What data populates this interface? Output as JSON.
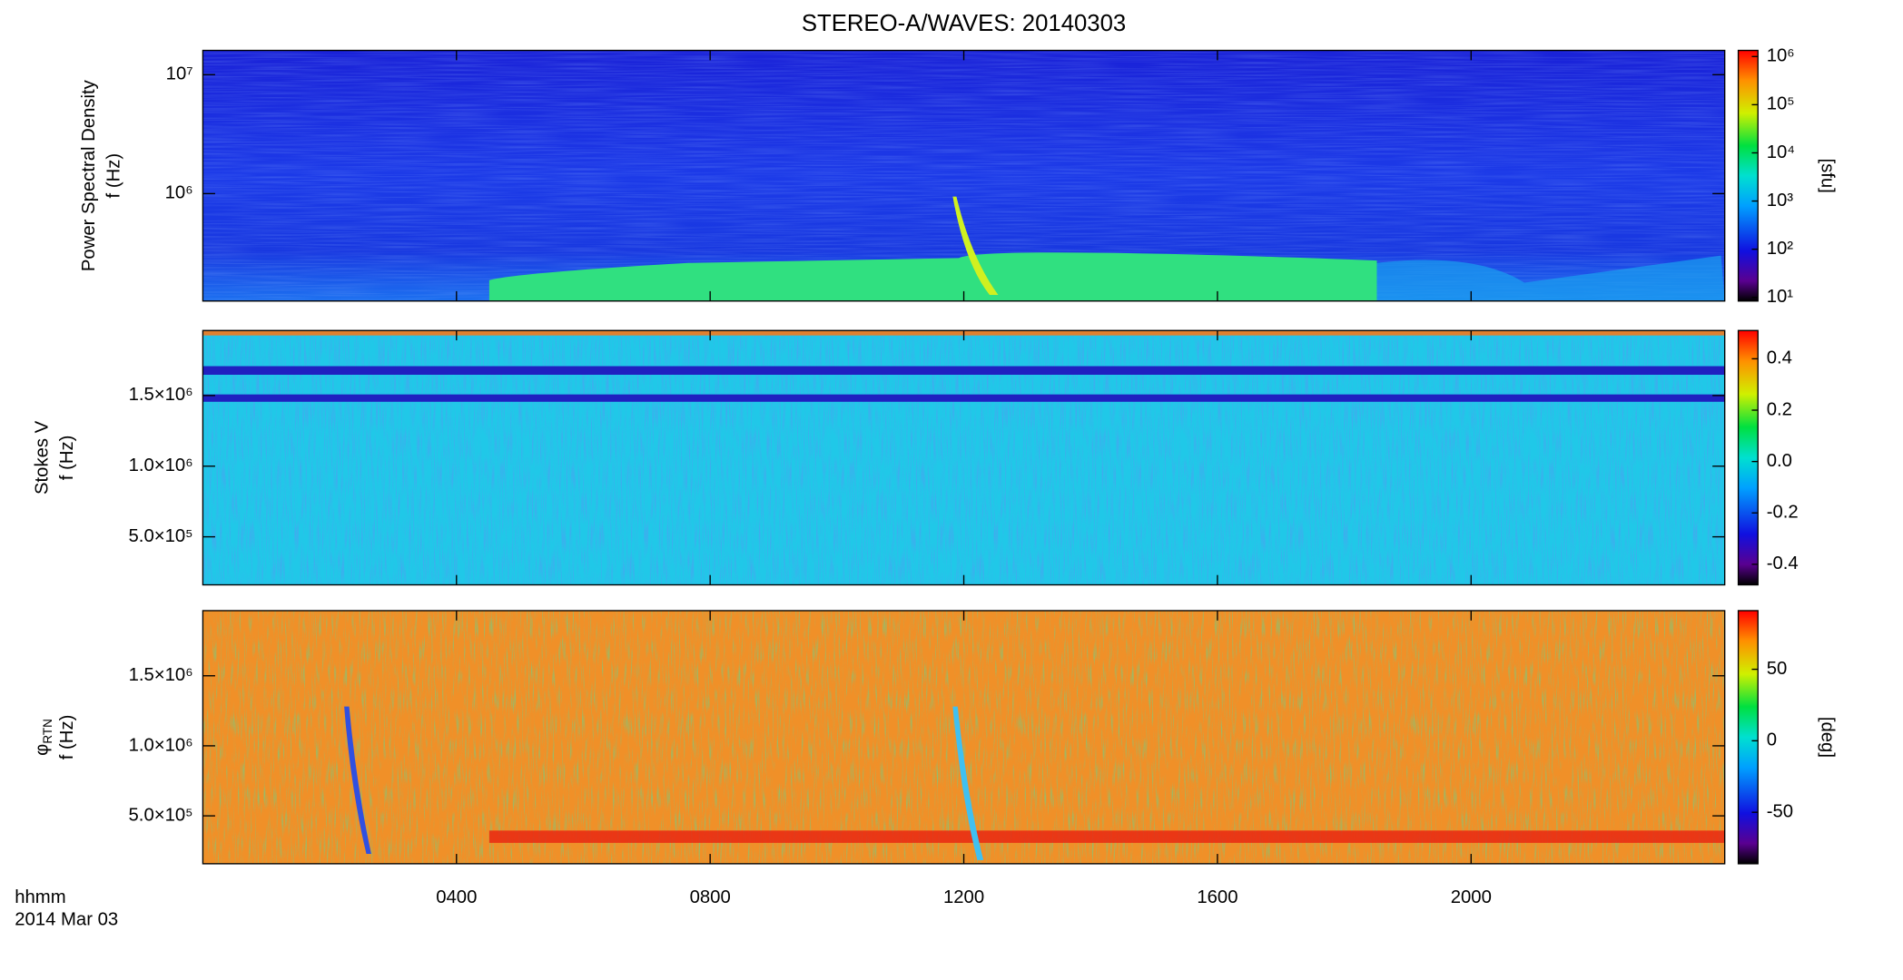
{
  "chart_data": [
    {
      "type": "spectrogram",
      "title": "STEREO-A/WAVES: 20140303",
      "quantity": "Power Spectral Density",
      "ylabel": "f (Hz)",
      "yscale": "log",
      "ylim": [
        125000,
        16000000
      ],
      "yticks": [
        {
          "value": 1000000,
          "label": "10⁶"
        },
        {
          "value": 10000000,
          "label": "10⁷"
        }
      ],
      "xlim": [
        0,
        24
      ],
      "colorbar": {
        "label": "[sfu]",
        "scale": "log",
        "lim": [
          8.4,
          1340000
        ],
        "ticks": [
          {
            "value": 10,
            "label": "10¹"
          },
          {
            "value": 100,
            "label": "10²"
          },
          {
            "value": 1000,
            "label": "10³"
          },
          {
            "value": 10000,
            "label": "10⁴"
          },
          {
            "value": 100000,
            "label": "10⁵"
          },
          {
            "value": 1000000,
            "label": "10⁶"
          }
        ]
      }
    },
    {
      "type": "spectrogram",
      "quantity": "Stokes V",
      "ylabel": "f (Hz)",
      "yscale": "linear",
      "ylim": [
        160000,
        1960000
      ],
      "yticks": [
        {
          "value": 500000,
          "label": "5.0×10⁵"
        },
        {
          "value": 1000000,
          "label": "1.0×10⁶"
        },
        {
          "value": 1500000,
          "label": "1.5×10⁶"
        }
      ],
      "xlim": [
        0,
        24
      ],
      "colorbar": {
        "scale": "linear",
        "lim": [
          -0.48,
          0.51
        ],
        "ticks": [
          -0.4,
          -0.2,
          {
            "value": 0,
            "label": "0.0"
          },
          0.2,
          0.4
        ]
      }
    },
    {
      "type": "spectrogram",
      "quantity": "φ",
      "quantity_subscript": "RTN",
      "ylabel": "f (Hz)",
      "yscale": "linear",
      "ylim": [
        158000,
        1965000
      ],
      "yticks": [
        {
          "value": 500000,
          "label": "5.0×10⁵"
        },
        {
          "value": 1000000,
          "label": "1.0×10⁶"
        },
        {
          "value": 1500000,
          "label": "1.5×10⁶"
        }
      ],
      "xlim": [
        0,
        24
      ],
      "xticks": [
        {
          "value": 4,
          "label": "0400"
        },
        {
          "value": 8,
          "label": "0800"
        },
        {
          "value": 12,
          "label": "1200"
        },
        {
          "value": 16,
          "label": "1600"
        },
        {
          "value": 20,
          "label": "2000"
        }
      ],
      "xlabel": [
        "hhmm",
        "2014 Mar 03"
      ],
      "colorbar": {
        "label": "[deg]",
        "scale": "linear",
        "lim": [
          -86,
          91
        ],
        "ticks": [
          -50,
          0,
          50
        ]
      }
    }
  ]
}
